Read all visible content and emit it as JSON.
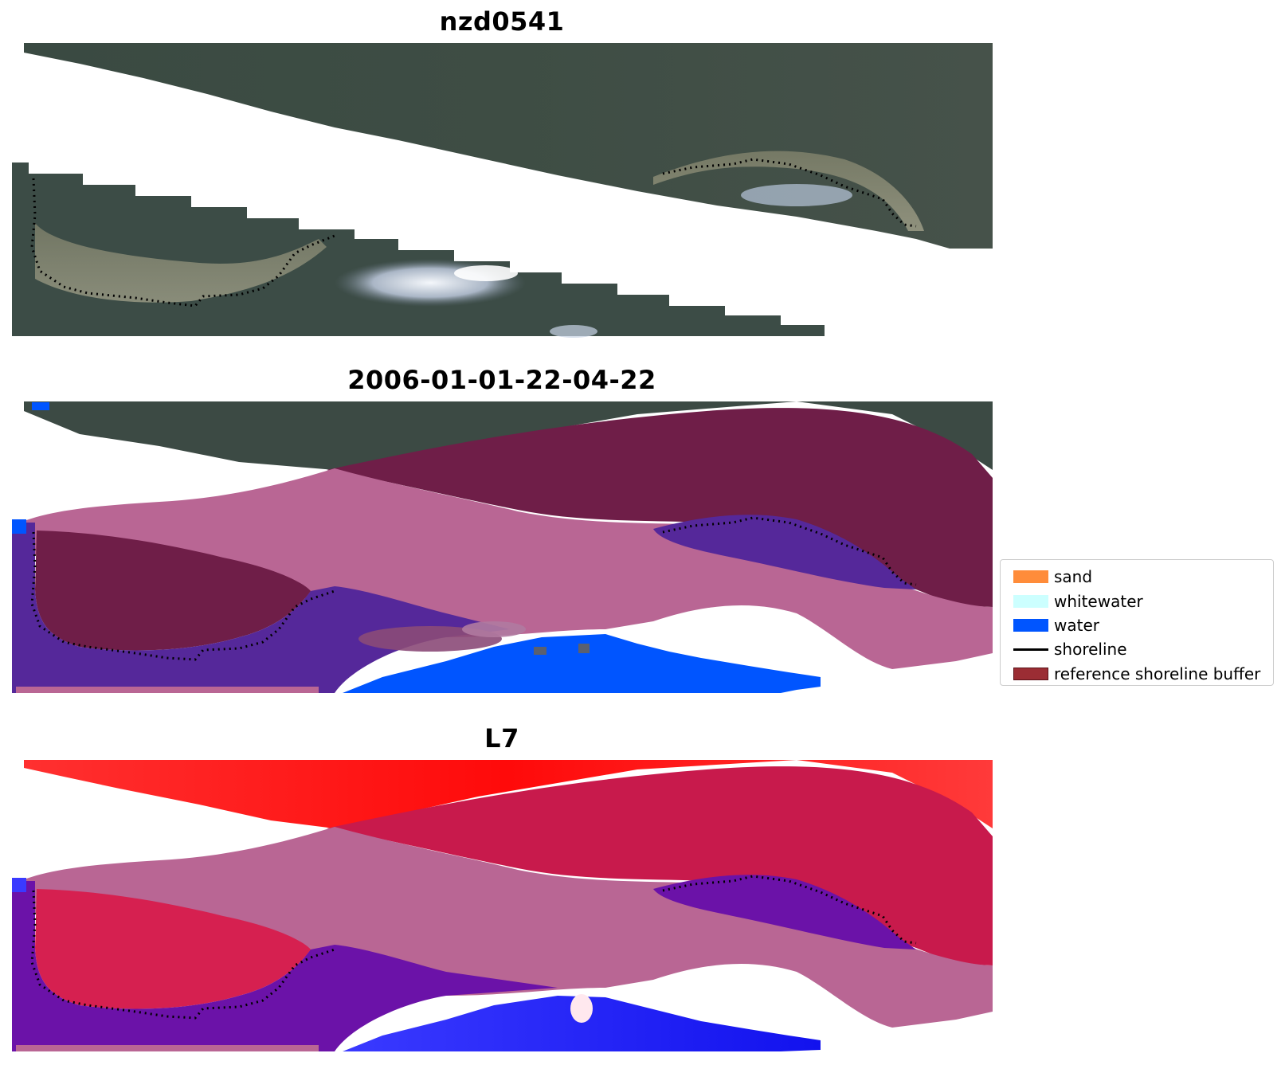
{
  "panels": [
    {
      "title": "nzd0541",
      "mode": "rgb"
    },
    {
      "title": "2006-01-01-22-04-22",
      "mode": "classified"
    },
    {
      "title": "L7",
      "mode": "index"
    }
  ],
  "legend": {
    "items": [
      {
        "label": "sand",
        "color": "#ff8c3a",
        "kind": "patch"
      },
      {
        "label": "whitewater",
        "color": "#ccffff",
        "kind": "patch"
      },
      {
        "label": "water",
        "color": "#0055ff",
        "kind": "patch"
      },
      {
        "label": "shoreline",
        "color": "#000000",
        "kind": "line"
      },
      {
        "label": "reference shoreline buffer",
        "color": "#9b2d34",
        "kind": "patch"
      }
    ]
  },
  "colors": {
    "forest": "#3c4a44",
    "forest_light": "#4b5a4a",
    "beach": "#8a8d73",
    "cloud": "#dfe6f0",
    "buffer_pink": "#b96694",
    "dark_maroon": "#6f1e48",
    "purple": "#55289a",
    "water_blue": "#0055ff",
    "index_red": "#ff1010",
    "index_crimson": "#c81a4c",
    "index_violet": "#6b12a8",
    "index_blue": "#2222ff"
  }
}
